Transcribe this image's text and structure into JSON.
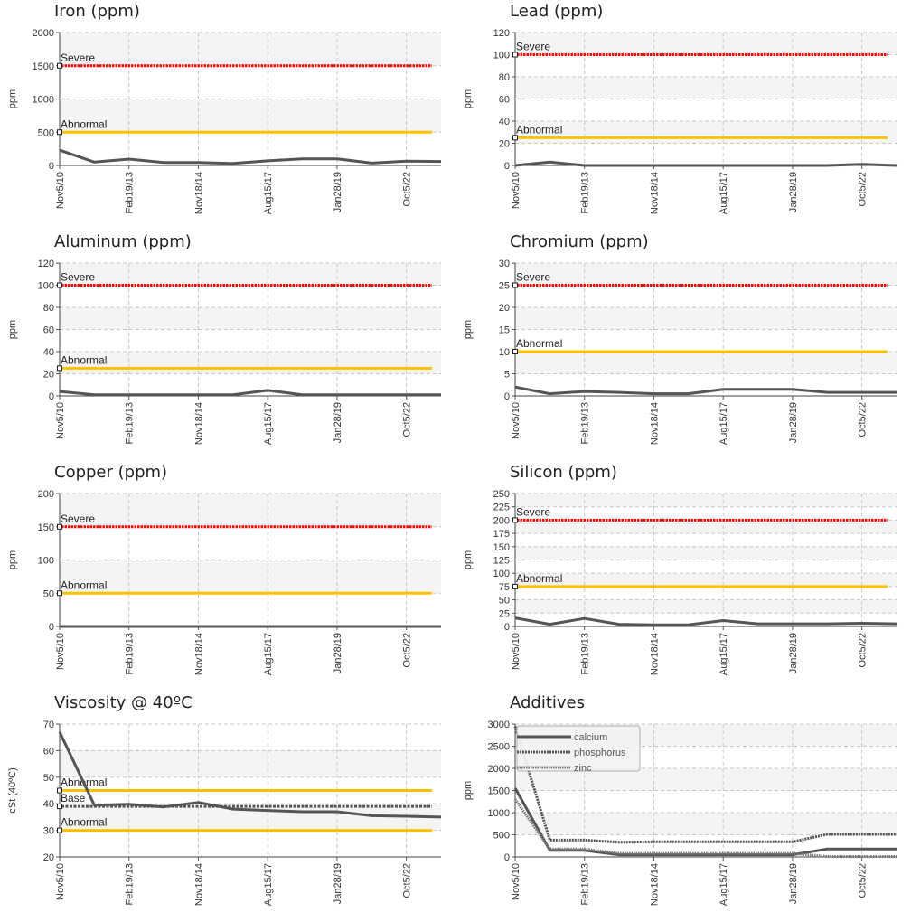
{
  "colors": {
    "severe": "#ff0000",
    "abnormal": "#ffc000",
    "base": "#555555",
    "series": "#555555",
    "band": "#f4f4f4",
    "grid": "#c8c8c8"
  },
  "dates": [
    "Nov5/10",
    "Feb19/13",
    "Nov18/14",
    "Aug15/17",
    "Jan28/19",
    "Oct5/22"
  ],
  "chart_data": [
    {
      "type": "line",
      "title": "Iron (ppm)",
      "ylabel": "ppm",
      "ylim": [
        0,
        2000
      ],
      "yticks": [
        0,
        500,
        1000,
        1500,
        2000
      ],
      "limits": [
        {
          "label": "Severe",
          "value": 1500,
          "kind": "severe"
        },
        {
          "label": "Abnormal",
          "value": 500,
          "kind": "abnormal"
        }
      ],
      "series": [
        {
          "values": [
            230,
            50,
            95,
            45,
            45,
            30,
            70,
            100,
            100,
            35,
            65,
            60
          ],
          "style": "solid"
        }
      ]
    },
    {
      "type": "line",
      "title": "Lead (ppm)",
      "ylabel": "ppm",
      "ylim": [
        0,
        120
      ],
      "yticks": [
        0,
        20,
        40,
        60,
        80,
        100,
        120
      ],
      "limits": [
        {
          "label": "Severe",
          "value": 100,
          "kind": "severe"
        },
        {
          "label": "Abnormal",
          "value": 25,
          "kind": "abnormal"
        }
      ],
      "series": [
        {
          "values": [
            0,
            3,
            0,
            0,
            0,
            0,
            0,
            0,
            0,
            0,
            1,
            0
          ],
          "style": "solid"
        }
      ]
    },
    {
      "type": "line",
      "title": "Aluminum (ppm)",
      "ylabel": "ppm",
      "ylim": [
        0,
        120
      ],
      "yticks": [
        0,
        20,
        40,
        60,
        80,
        100,
        120
      ],
      "limits": [
        {
          "label": "Severe",
          "value": 100,
          "kind": "severe"
        },
        {
          "label": "Abnormal",
          "value": 25,
          "kind": "abnormal"
        }
      ],
      "series": [
        {
          "values": [
            4,
            1,
            1,
            1,
            1,
            1,
            5,
            1,
            1,
            1,
            1,
            1
          ],
          "style": "solid"
        }
      ]
    },
    {
      "type": "line",
      "title": "Chromium (ppm)",
      "ylabel": "ppm",
      "ylim": [
        0,
        30
      ],
      "yticks": [
        0,
        5,
        10,
        15,
        20,
        25,
        30
      ],
      "limits": [
        {
          "label": "Severe",
          "value": 25,
          "kind": "severe"
        },
        {
          "label": "Abnormal",
          "value": 10,
          "kind": "abnormal"
        }
      ],
      "series": [
        {
          "values": [
            2,
            0.5,
            1,
            0.8,
            0.5,
            0.5,
            1.5,
            1.5,
            1.5,
            0.8,
            0.8,
            0.8
          ],
          "style": "solid"
        }
      ]
    },
    {
      "type": "line",
      "title": "Copper (ppm)",
      "ylabel": "ppm",
      "ylim": [
        0,
        200
      ],
      "yticks": [
        0,
        50,
        100,
        150,
        200
      ],
      "limits": [
        {
          "label": "Severe",
          "value": 150,
          "kind": "severe"
        },
        {
          "label": "Abnormal",
          "value": 50,
          "kind": "abnormal"
        }
      ],
      "series": [
        {
          "values": [
            0,
            0,
            0,
            0,
            0,
            0,
            0,
            0,
            0,
            0,
            0,
            0
          ],
          "style": "solid"
        }
      ]
    },
    {
      "type": "line",
      "title": "Silicon (ppm)",
      "ylabel": "ppm",
      "ylim": [
        0,
        250
      ],
      "yticks": [
        0,
        25,
        50,
        75,
        100,
        125,
        150,
        175,
        200,
        225,
        250
      ],
      "limits": [
        {
          "label": "Severe",
          "value": 200,
          "kind": "severe"
        },
        {
          "label": "Abnormal",
          "value": 75,
          "kind": "abnormal"
        }
      ],
      "series": [
        {
          "values": [
            16,
            4,
            15,
            4,
            3,
            3,
            11,
            5,
            5,
            5,
            6,
            5
          ],
          "style": "solid"
        }
      ]
    },
    {
      "type": "line",
      "title": "Viscosity @ 40ºC",
      "ylabel": "cSt (40ºC)",
      "ylim": [
        20,
        70
      ],
      "yticks": [
        20,
        30,
        40,
        50,
        60,
        70
      ],
      "limits": [
        {
          "label": "Abnormal",
          "value": 45,
          "kind": "abnormal"
        },
        {
          "label": "Base",
          "value": 39,
          "kind": "base"
        },
        {
          "label": "Abnormal",
          "value": 30,
          "kind": "abnormal"
        }
      ],
      "series": [
        {
          "values": [
            67,
            39.5,
            39.8,
            38.8,
            40.5,
            38,
            37.5,
            37,
            37,
            35.5,
            35.3,
            35
          ],
          "style": "solid"
        }
      ]
    },
    {
      "type": "line",
      "title": "Additives",
      "ylabel": "ppm",
      "ylim": [
        0,
        3000
      ],
      "yticks": [
        0,
        500,
        1000,
        1500,
        2000,
        2500,
        3000
      ],
      "limits": [],
      "legend": {
        "position": "top-left"
      },
      "series": [
        {
          "name": "calcium",
          "values": [
            1550,
            150,
            150,
            50,
            50,
            50,
            50,
            50,
            50,
            180,
            180,
            180
          ],
          "style": "solid"
        },
        {
          "name": "phosphorus",
          "values": [
            2950,
            380,
            380,
            330,
            340,
            340,
            340,
            340,
            340,
            510,
            510,
            510
          ],
          "style": "dashed"
        },
        {
          "name": "zinc",
          "values": [
            1300,
            180,
            180,
            80,
            80,
            80,
            80,
            80,
            80,
            10,
            10,
            10
          ],
          "style": "dotted"
        }
      ]
    }
  ]
}
